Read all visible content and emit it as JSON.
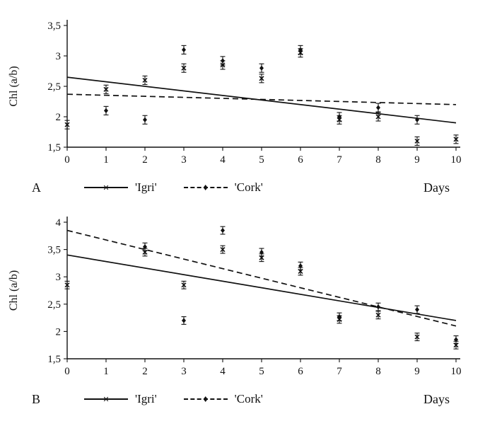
{
  "figure": {
    "background": "#ffffff",
    "ink": "#111111"
  },
  "chart_data": [
    {
      "type": "scatter",
      "panel_label": "A",
      "xlabel": "Days",
      "ylabel": "Chl (a/b)",
      "xlim": [
        0,
        10
      ],
      "ylim": [
        1.5,
        3.5
      ],
      "grid": false,
      "legend_position": "bottom-left",
      "xticks": [
        0,
        1,
        2,
        3,
        4,
        5,
        6,
        7,
        8,
        9,
        10
      ],
      "xtick_labels": [
        "0",
        "1",
        "2",
        "3",
        "4",
        "5",
        "6",
        "7",
        "8",
        "9",
        "10"
      ],
      "ytick_values": [
        1.5,
        2,
        2.5,
        3,
        3.5
      ],
      "ytick_labels": [
        "1,5",
        "2",
        "2,5",
        "3",
        "3,5"
      ],
      "series": [
        {
          "name": "'Igri'",
          "marker": "x",
          "marker_glyph": "✕",
          "line_style": "solid",
          "error": 0.07,
          "points": [
            [
              0,
              1.87
            ],
            [
              1,
              2.45
            ],
            [
              2,
              2.6
            ],
            [
              3,
              2.8
            ],
            [
              4,
              2.85
            ],
            [
              5,
              2.63
            ],
            [
              6,
              3.05
            ],
            [
              7,
              1.95
            ],
            [
              8,
              2.0
            ],
            [
              9,
              1.6
            ],
            [
              10,
              1.63
            ]
          ],
          "trend": [
            [
              0,
              2.65
            ],
            [
              10,
              1.9
            ]
          ]
        },
        {
          "name": "'Cork'",
          "marker": "diamond",
          "marker_glyph": "♦",
          "line_style": "dashed",
          "error": 0.07,
          "points": [
            [
              1,
              2.1
            ],
            [
              2,
              1.95
            ],
            [
              3,
              3.1
            ],
            [
              4,
              2.92
            ],
            [
              5,
              2.8
            ],
            [
              6,
              3.1
            ],
            [
              7,
              2.0
            ],
            [
              8,
              2.15
            ],
            [
              9,
              1.95
            ]
          ],
          "trend": [
            [
              0,
              2.37
            ],
            [
              10,
              2.2
            ]
          ]
        }
      ]
    },
    {
      "type": "scatter",
      "panel_label": "B",
      "xlabel": "Days",
      "ylabel": "Chl (a/b)",
      "xlim": [
        0,
        10
      ],
      "ylim": [
        1.5,
        4
      ],
      "grid": false,
      "legend_position": "bottom-left",
      "xticks": [
        0,
        1,
        2,
        3,
        4,
        5,
        6,
        7,
        8,
        9,
        10
      ],
      "xtick_labels": [
        "0",
        "1",
        "2",
        "3",
        "4",
        "5",
        "6",
        "7",
        "8",
        "9",
        "10"
      ],
      "ytick_values": [
        1.5,
        2,
        2.5,
        3,
        3.5,
        4
      ],
      "ytick_labels": [
        "1,5",
        "2",
        "2,5",
        "3",
        "3,5",
        "4"
      ],
      "series": [
        {
          "name": "'Igri'",
          "marker": "x",
          "marker_glyph": "✕",
          "line_style": "solid",
          "error": 0.07,
          "points": [
            [
              0,
              2.85
            ],
            [
              2,
              3.45
            ],
            [
              3,
              2.85
            ],
            [
              4,
              3.5
            ],
            [
              5,
              3.35
            ],
            [
              6,
              3.1
            ],
            [
              7,
              2.22
            ],
            [
              8,
              2.3
            ],
            [
              9,
              1.9
            ],
            [
              10,
              1.75
            ]
          ],
          "trend": [
            [
              0,
              3.4
            ],
            [
              10,
              2.2
            ]
          ]
        },
        {
          "name": "'Cork'",
          "marker": "diamond",
          "marker_glyph": "♦",
          "line_style": "dashed",
          "error": 0.07,
          "points": [
            [
              2,
              3.55
            ],
            [
              3,
              2.2
            ],
            [
              4,
              3.85
            ],
            [
              5,
              3.45
            ],
            [
              6,
              3.2
            ],
            [
              7,
              2.27
            ],
            [
              8,
              2.45
            ],
            [
              9,
              2.4
            ],
            [
              10,
              1.85
            ]
          ],
          "trend": [
            [
              0,
              3.85
            ],
            [
              10,
              2.1
            ]
          ]
        }
      ]
    }
  ]
}
